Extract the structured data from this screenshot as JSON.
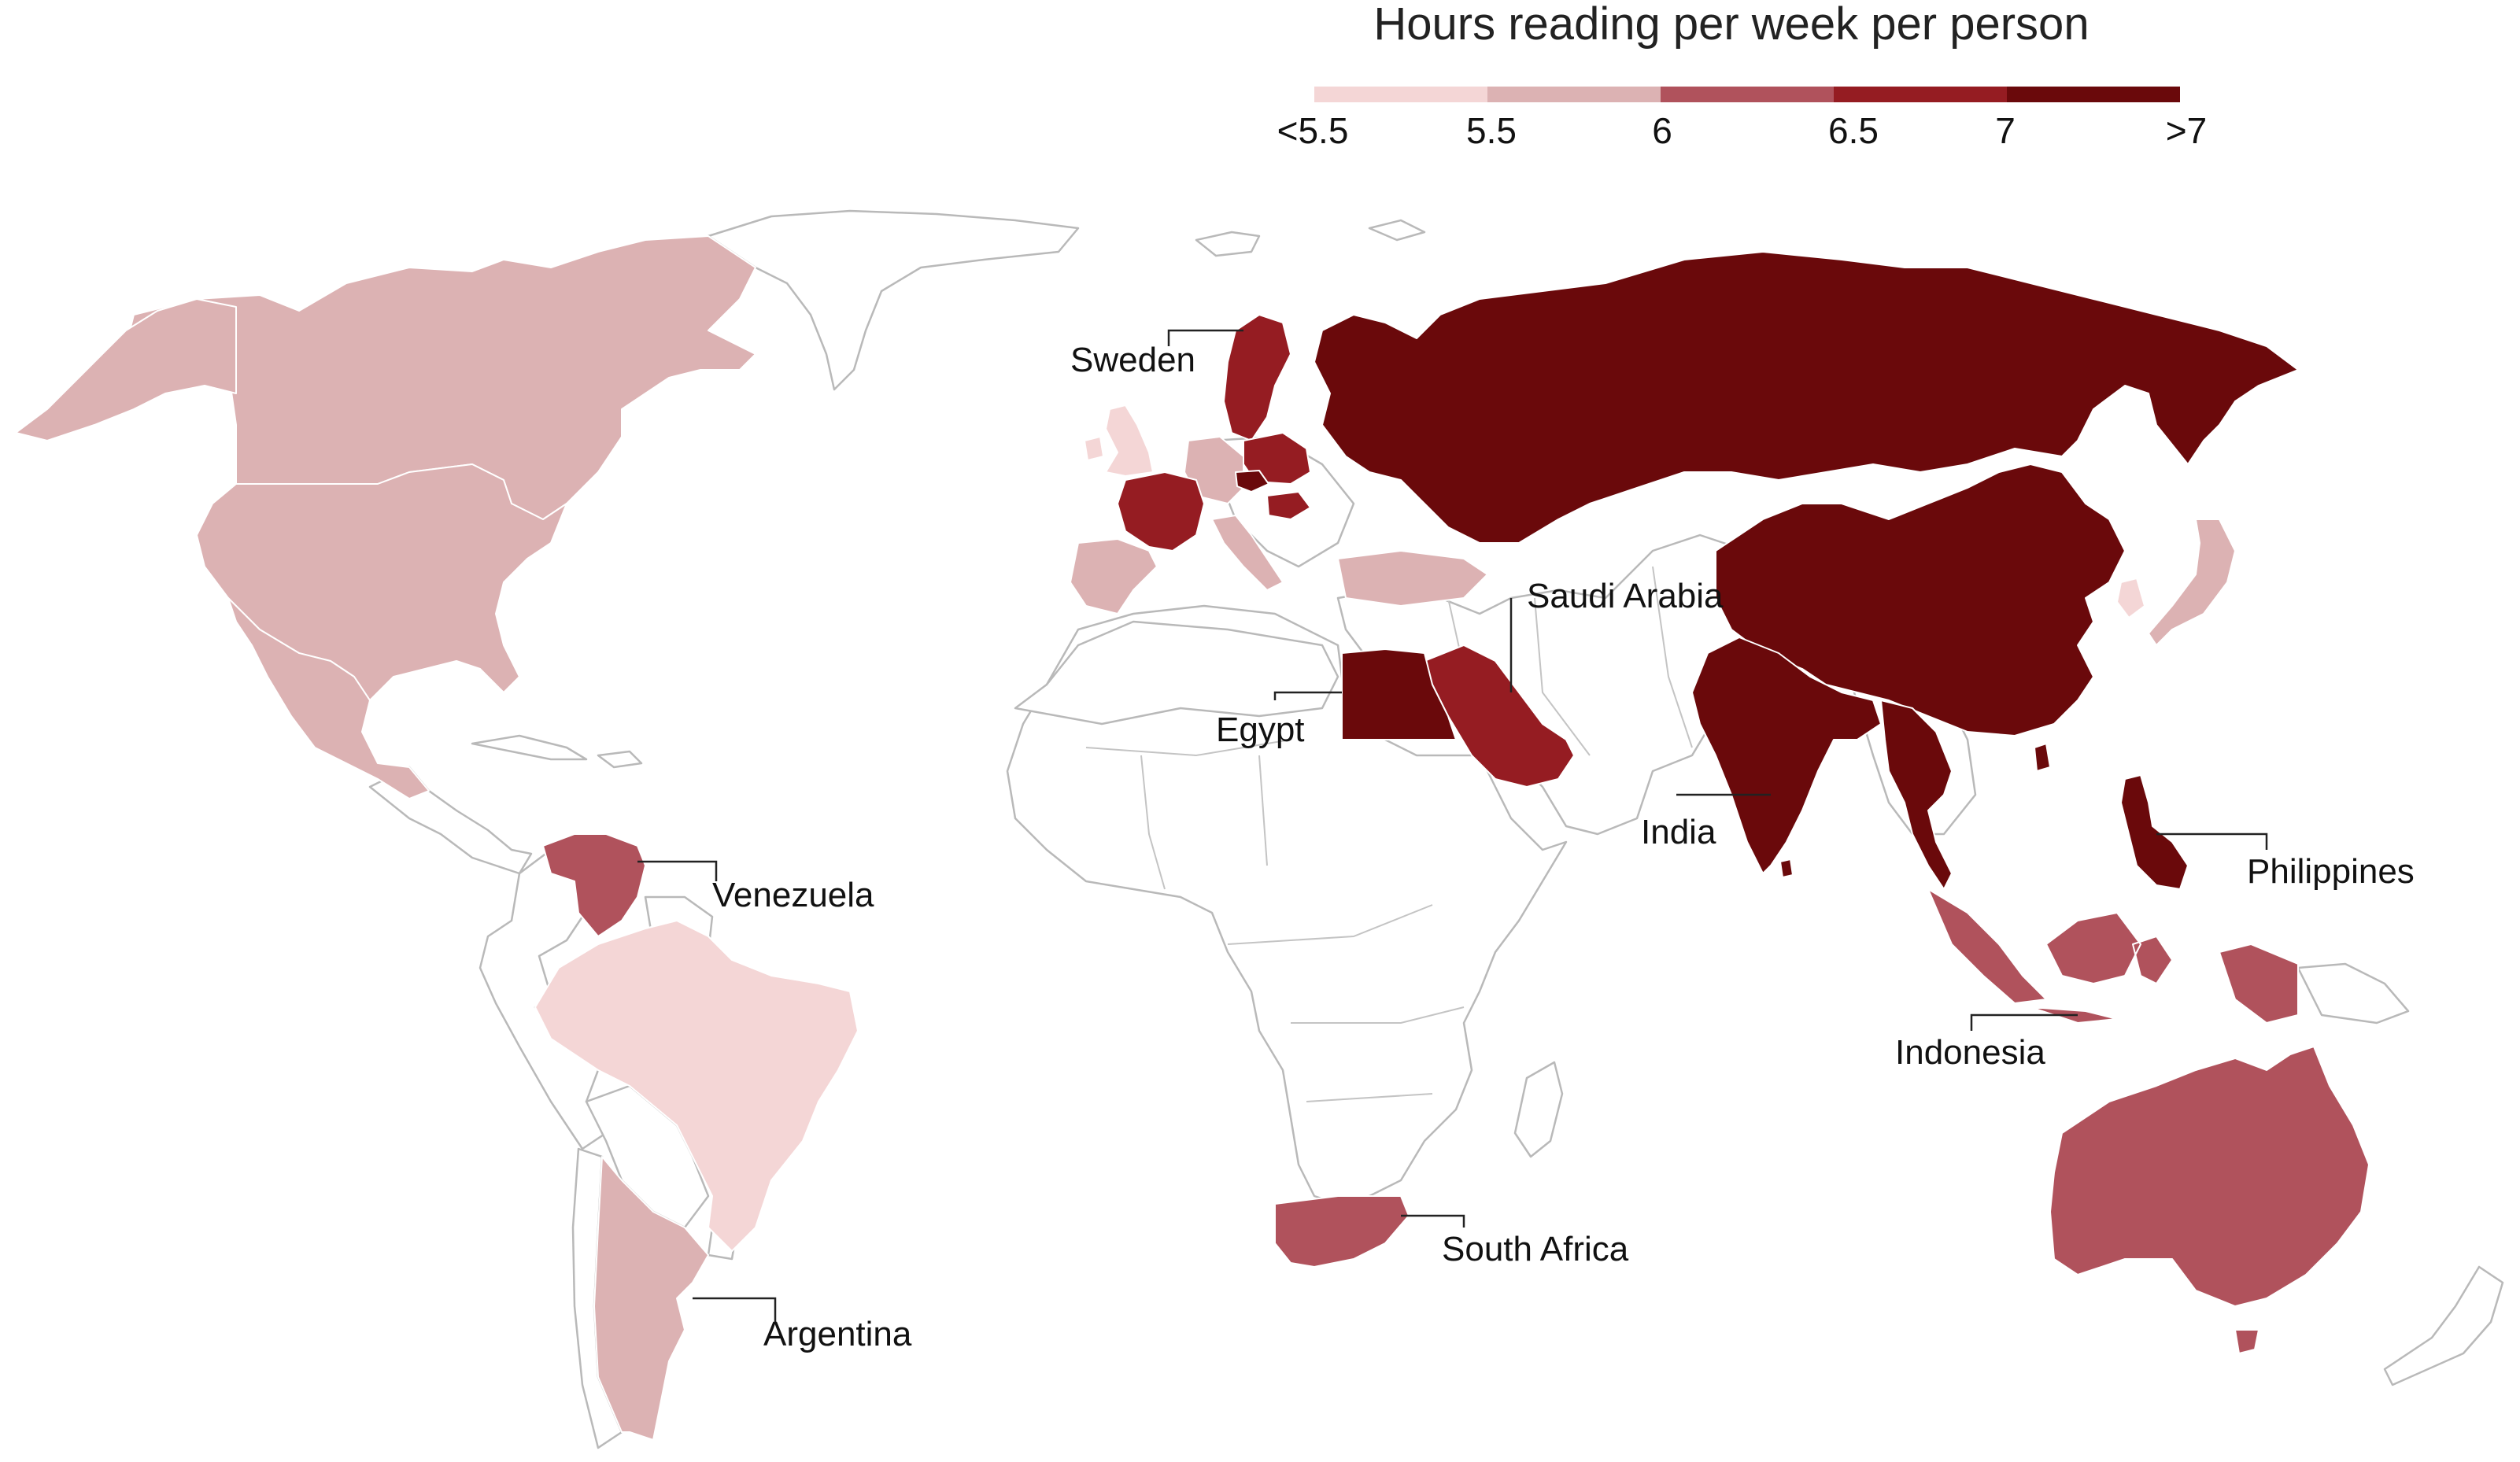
{
  "legend": {
    "title": "Hours reading per week per person",
    "bins": [
      {
        "label": "<5.5",
        "color": "#f4d6d6"
      },
      {
        "label": "5.5",
        "color": "#dcb2b3"
      },
      {
        "label": "6",
        "color": "#b0525c"
      },
      {
        "label": "6.5",
        "color": "#951c22"
      },
      {
        "label": "7",
        "color": "#6a090b"
      },
      {
        "label": ">7",
        "color": "#6a090b"
      }
    ]
  },
  "labels": {
    "sweden": "Sweden",
    "saudi_arabia": "Saudi Arabia",
    "egypt": "Egypt",
    "india": "India",
    "philippines": "Philippines",
    "indonesia": "Indonesia",
    "venezuela": "Venezuela",
    "south_africa": "South Africa",
    "argentina": "Argentina"
  },
  "colors": {
    "lt5_5": "#f4d6d6",
    "c5_5": "#dcb2b3",
    "c6": "#b0525c",
    "c6_5": "#951c22",
    "gt7": "#6a090b"
  }
}
